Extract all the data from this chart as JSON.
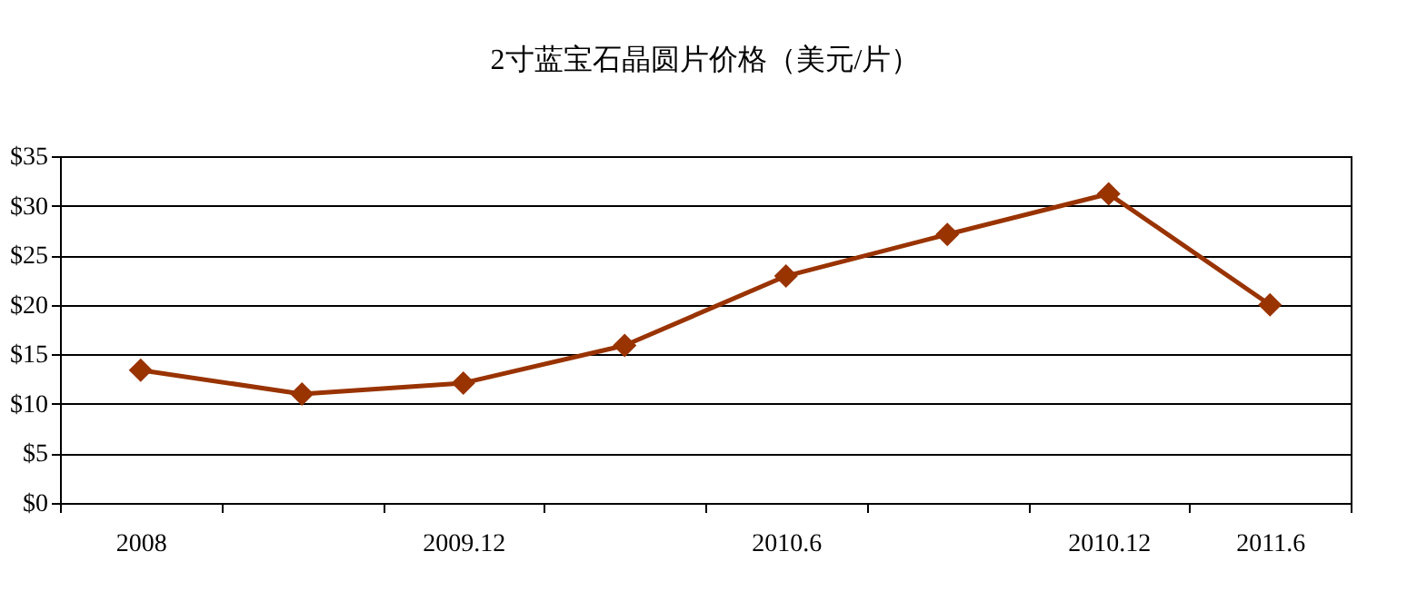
{
  "chart_data": {
    "type": "line",
    "title": "2寸蓝宝石晶圆片价格（美元/片）",
    "categories": [
      "2008",
      null,
      "2009.12",
      null,
      "2010.6",
      null,
      "2010.12",
      "2011.6"
    ],
    "series": [
      {
        "color": "#993300",
        "values": [
          13.4,
          11.0,
          12.1,
          15.9,
          22.9,
          27.1,
          31.2,
          20.0
        ]
      }
    ],
    "ylim": [
      0,
      35
    ],
    "yticks": [
      {
        "value": 0,
        "label": "$0"
      },
      {
        "value": 5,
        "label": "$5"
      },
      {
        "value": 10,
        "label": "$10"
      },
      {
        "value": 15,
        "label": "$15"
      },
      {
        "value": 20,
        "label": "$20"
      },
      {
        "value": 25,
        "label": "$25"
      },
      {
        "value": 30,
        "label": "$30"
      },
      {
        "value": 35,
        "label": "$35"
      }
    ],
    "grid": "y",
    "legend": false,
    "marker": "diamond",
    "line_style": "solid"
  }
}
